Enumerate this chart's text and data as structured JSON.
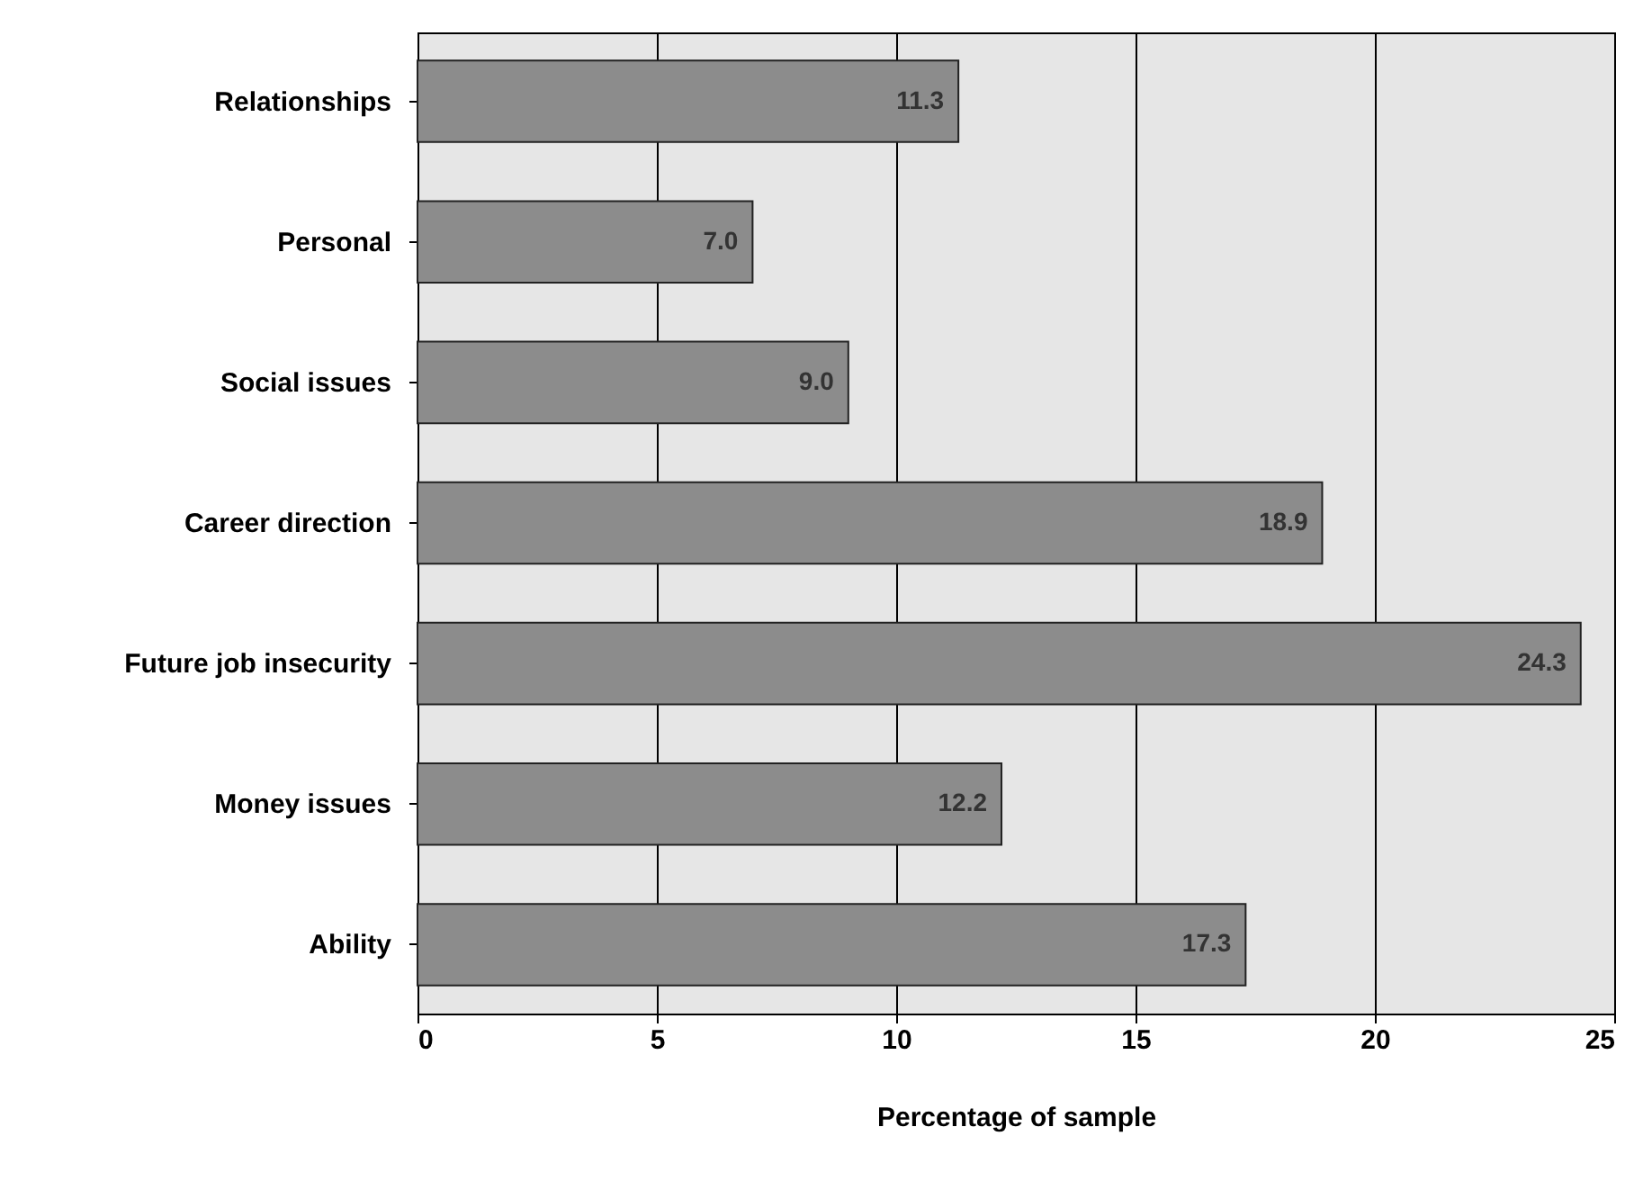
{
  "chart_data": {
    "type": "bar",
    "orientation": "horizontal",
    "xlabel": "Percentage of sample",
    "categories": [
      "Relationships",
      "Personal",
      "Social issues",
      "Career direction",
      "Future job insecurity",
      "Money issues",
      "Ability"
    ],
    "values": [
      11.3,
      7.0,
      9.0,
      18.9,
      24.3,
      12.2,
      17.3
    ],
    "color": "#8c8c8c",
    "xlim": [
      0,
      25
    ],
    "xticks": [
      0,
      5,
      10,
      15,
      20,
      25
    ],
    "grid": "x",
    "value_labels": [
      "11.3",
      "7.0",
      "9.0",
      "18.9",
      "24.3",
      "12.2",
      "17.3"
    ]
  }
}
